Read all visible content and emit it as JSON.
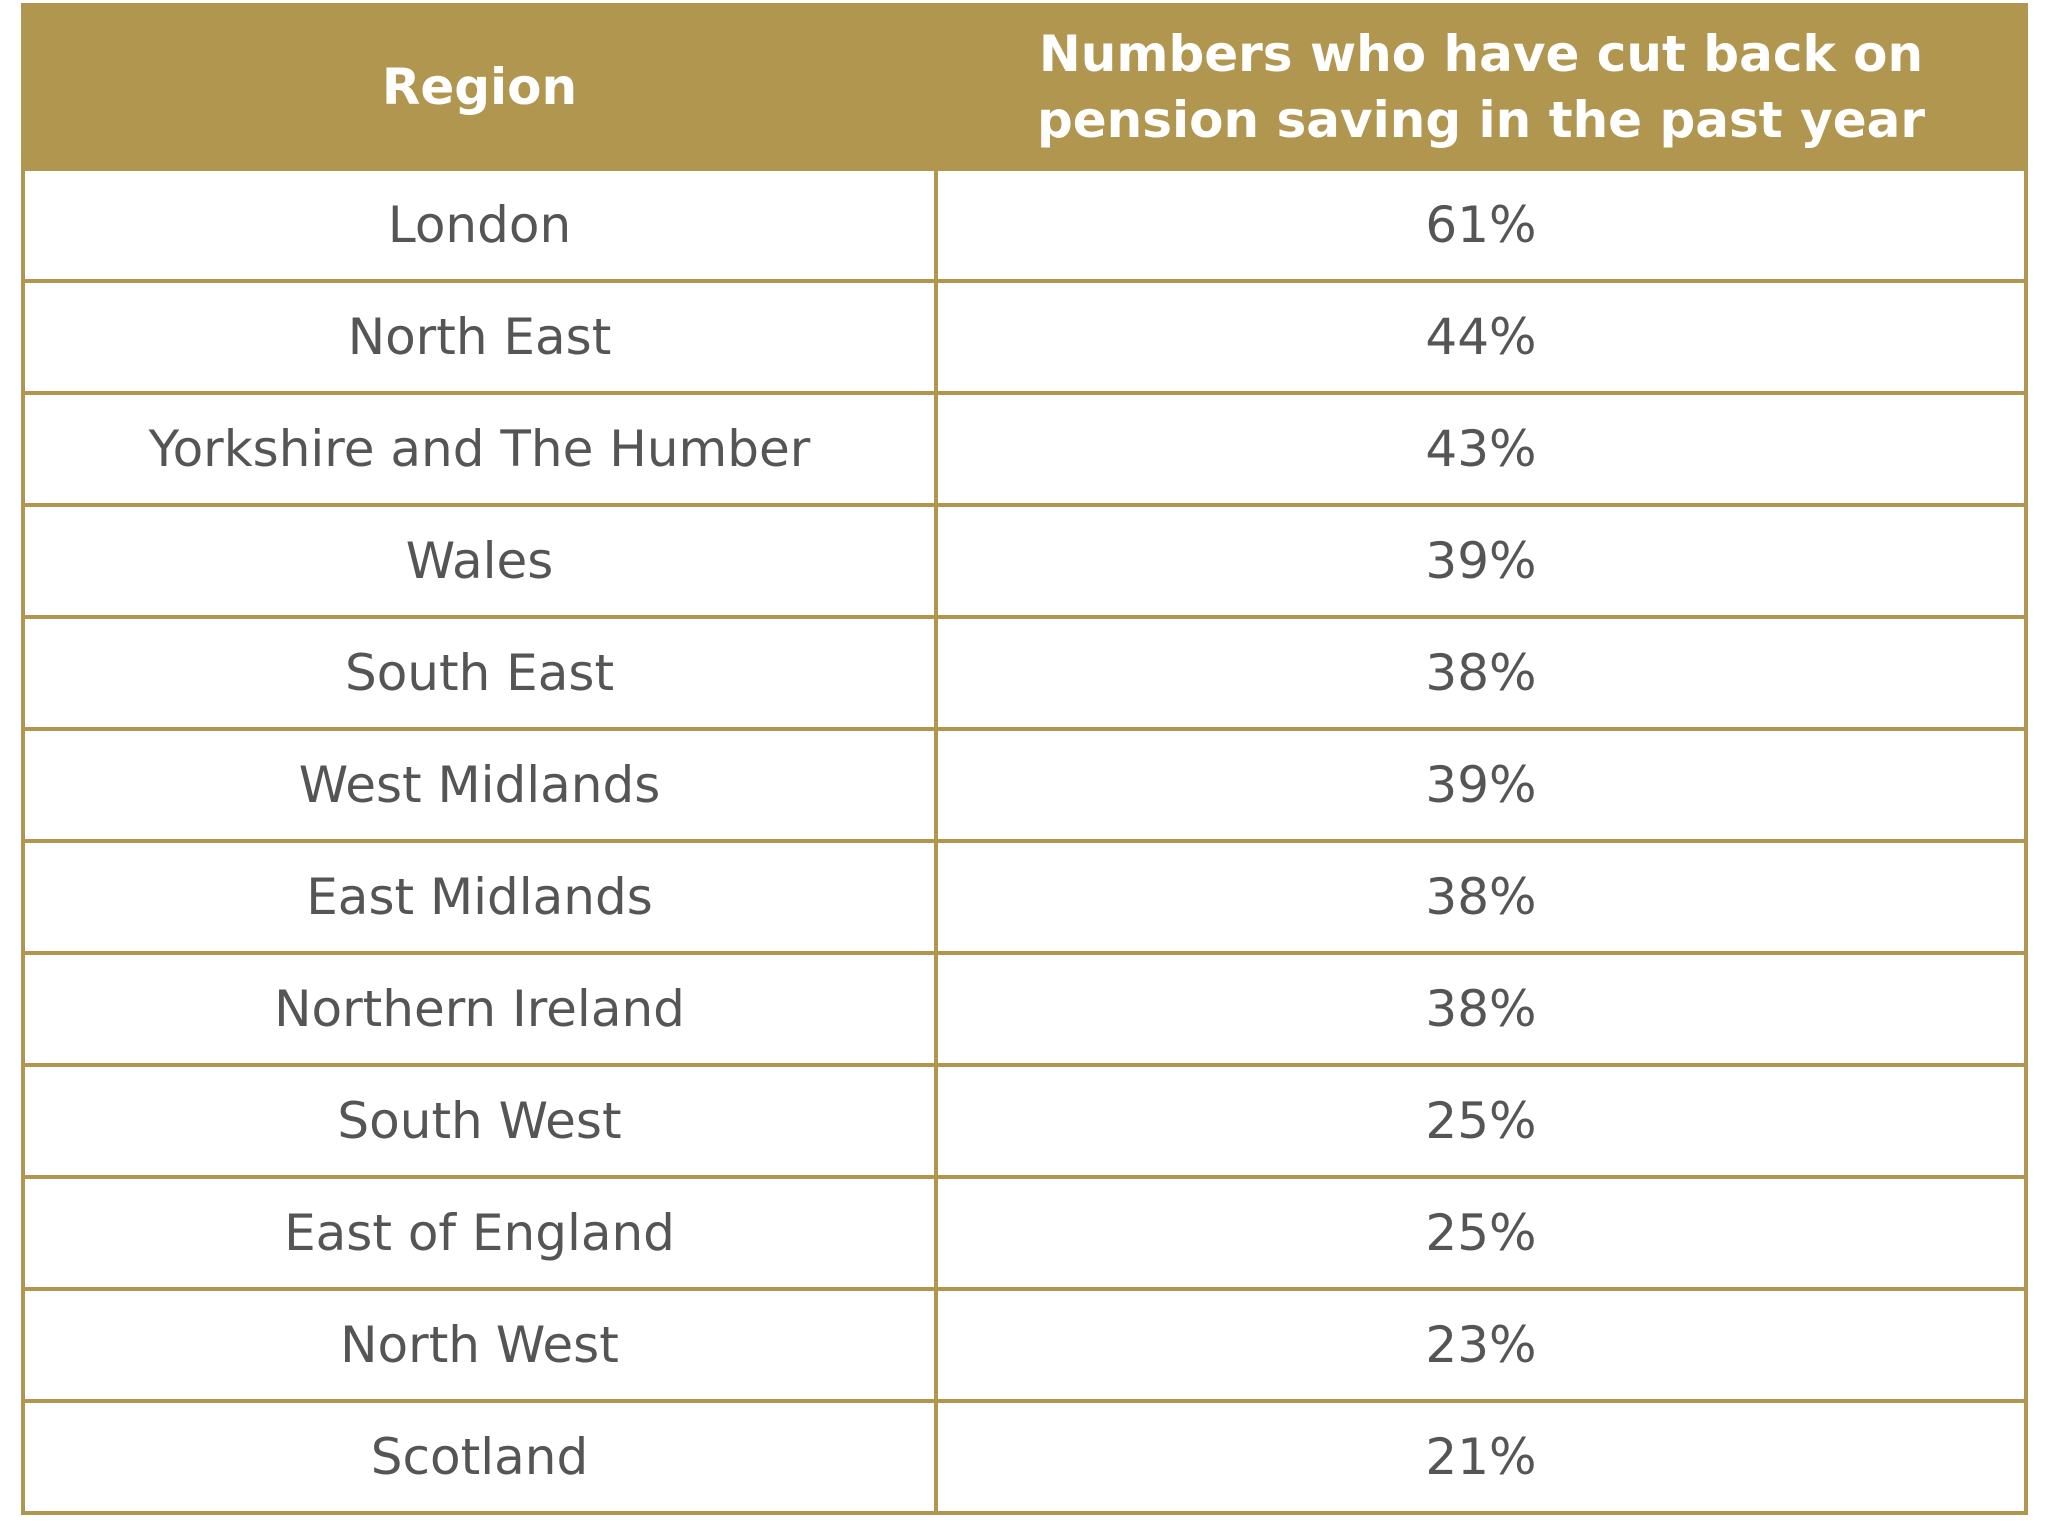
{
  "table": {
    "header": [
      "Region",
      "Numbers who have cut back on pension saving in the past year"
    ],
    "rows": [
      [
        "London",
        "61%"
      ],
      [
        "North East",
        "44%"
      ],
      [
        "Yorkshire and The Humber",
        "43%"
      ],
      [
        "Wales",
        "39%"
      ],
      [
        "South East",
        "38%"
      ],
      [
        "West Midlands",
        "39%"
      ],
      [
        "East Midlands",
        "38%"
      ],
      [
        "Northern Ireland",
        "38%"
      ],
      [
        "South West",
        "25%"
      ],
      [
        "East of England",
        "25%"
      ],
      [
        "North West",
        "23%"
      ],
      [
        "Scotland",
        "21%"
      ]
    ]
  }
}
